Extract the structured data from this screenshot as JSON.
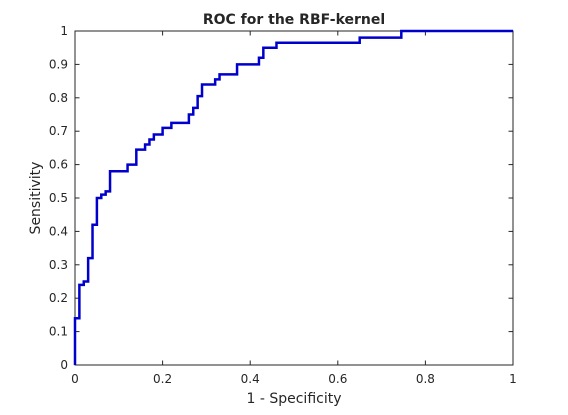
{
  "chart_data": {
    "type": "line",
    "title": "ROC for the RBF-kernel",
    "xlabel": "1 - Specificity",
    "ylabel": "Sensitivity",
    "xlim": [
      0,
      1
    ],
    "ylim": [
      0,
      1
    ],
    "x_ticks": [
      0,
      0.2,
      0.4,
      0.6,
      0.8,
      1
    ],
    "x_tick_labels": [
      "0",
      "0.2",
      "0.4",
      "0.6",
      "0.8",
      "1"
    ],
    "y_ticks": [
      0,
      0.1,
      0.2,
      0.3,
      0.4,
      0.5,
      0.6,
      0.7,
      0.8,
      0.9,
      1
    ],
    "y_tick_labels": [
      "0",
      "0.1",
      "0.2",
      "0.3",
      "0.4",
      "0.5",
      "0.6",
      "0.7",
      "0.8",
      "0.9",
      "1"
    ],
    "grid": false,
    "line_color": "#0000cc",
    "series": [
      {
        "x": [
          0,
          0,
          0.01,
          0.01,
          0.02,
          0.02,
          0.03,
          0.03,
          0.04,
          0.04,
          0.05,
          0.05,
          0.06,
          0.06,
          0.07,
          0.07,
          0.08,
          0.08,
          0.12,
          0.12,
          0.14,
          0.14,
          0.16,
          0.16,
          0.17,
          0.17,
          0.18,
          0.18,
          0.2,
          0.2,
          0.22,
          0.22,
          0.26,
          0.26,
          0.27,
          0.27,
          0.28,
          0.28,
          0.29,
          0.29,
          0.32,
          0.32,
          0.33,
          0.33,
          0.37,
          0.37,
          0.42,
          0.42,
          0.43,
          0.43,
          0.46,
          0.46,
          0.65,
          0.65,
          0.745,
          0.745,
          1
        ],
        "y": [
          0,
          0.14,
          0.14,
          0.24,
          0.24,
          0.25,
          0.25,
          0.32,
          0.32,
          0.42,
          0.42,
          0.5,
          0.5,
          0.51,
          0.51,
          0.52,
          0.52,
          0.58,
          0.58,
          0.6,
          0.6,
          0.645,
          0.645,
          0.66,
          0.66,
          0.675,
          0.675,
          0.69,
          0.69,
          0.71,
          0.71,
          0.725,
          0.725,
          0.75,
          0.75,
          0.77,
          0.77,
          0.805,
          0.805,
          0.84,
          0.84,
          0.855,
          0.855,
          0.87,
          0.87,
          0.9,
          0.9,
          0.92,
          0.92,
          0.95,
          0.95,
          0.965,
          0.965,
          0.98,
          0.98,
          1,
          1
        ]
      }
    ]
  }
}
